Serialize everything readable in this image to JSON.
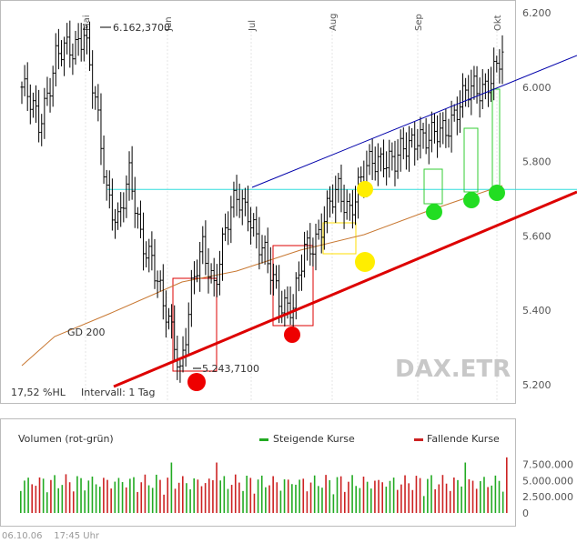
{
  "chart_data": [
    {
      "type": "ohlc",
      "symbol": "DAX.ETR",
      "ylim": [
        5200,
        6200
      ],
      "y_ticks": [
        "6.200",
        "6.000",
        "5.800",
        "5.600",
        "5.400",
        "5.200"
      ],
      "y_tick_values": [
        6200,
        6000,
        5800,
        5600,
        5400,
        5200
      ],
      "months": [
        "Mai",
        "Jun",
        "Jul",
        "Aug",
        "Sep",
        "Okt"
      ],
      "annotations": {
        "high": "6.162,3700",
        "low": "5.243,7100",
        "ma_label": "GD 200",
        "hl_text": "17,52 %HL",
        "interval_text": "Intervall: 1 Tag"
      },
      "reference_level": 5725,
      "colors": {
        "bar": "#000000",
        "ma": "#c87832",
        "support": "#dd0000",
        "resistance": "#0000aa",
        "horizontal": "#33dddd",
        "red_dot": "#ee0000",
        "green_dot": "#22dd22",
        "yellow_dot": "#ffee00"
      }
    },
    {
      "type": "bar",
      "title": "Volumen (rot-grün)",
      "legend": [
        "Steigende Kurse",
        "Fallende Kurse"
      ],
      "ylim": [
        0,
        9000000
      ],
      "y_ticks": [
        "7.500.000",
        "5.000.000",
        "2.500.000",
        "0"
      ],
      "y_tick_values": [
        7500000,
        5000000,
        2500000,
        0
      ],
      "colors": {
        "up": "#22aa22",
        "down": "#cc2222"
      }
    }
  ],
  "footer": {
    "date": "06.10.06",
    "time": "17:45 Uhr"
  }
}
